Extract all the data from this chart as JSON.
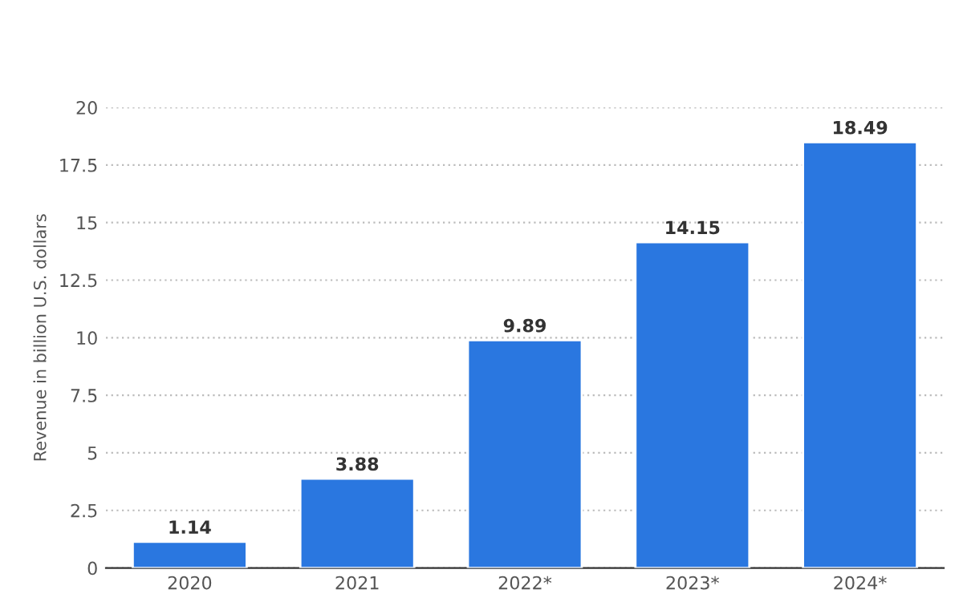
{
  "chart_data": {
    "type": "bar",
    "ylabel": "Revenue in billion U.S. dollars",
    "categories": [
      "2020",
      "2021",
      "2022*",
      "2023*",
      "2024*"
    ],
    "values": [
      1.14,
      3.88,
      9.89,
      14.15,
      18.49
    ],
    "color": "#2a77e0",
    "ylim": [
      0,
      20
    ],
    "yticks": [
      0,
      2.5,
      5,
      7.5,
      10,
      12.5,
      15,
      17.5,
      20
    ],
    "grid": "y",
    "data_labels": true
  }
}
